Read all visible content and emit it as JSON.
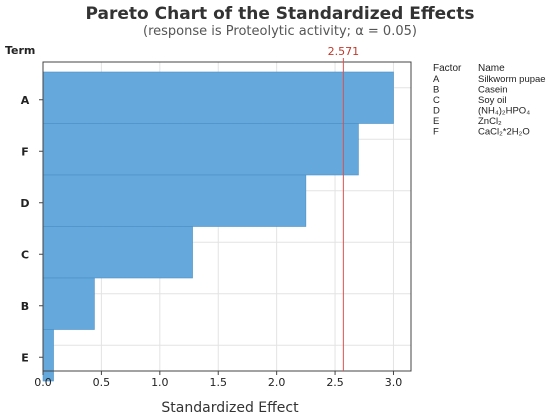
{
  "colors": {
    "bar": "#64a8dc",
    "bar_edge": "#4b8fc6",
    "ref_line": "#d9534f",
    "ref_label": "#c0392b",
    "grid": "#e3e3e3"
  },
  "chart_data": {
    "type": "bar",
    "orientation": "horizontal",
    "title": "Pareto Chart of the Standardized Effects",
    "subtitle": "(response is Proteolytic activity; α = 0.05)",
    "xlabel": "Standardized Effect",
    "ylabel": "Term",
    "categories": [
      "A",
      "F",
      "D",
      "C",
      "B",
      "E"
    ],
    "values": [
      3.0,
      2.7,
      2.25,
      1.28,
      0.44,
      0.09
    ],
    "xlim": [
      0,
      3.15
    ],
    "xticks": [
      "0.0",
      "0.5",
      "1.0",
      "1.5",
      "2.0",
      "2.5",
      "3.0"
    ],
    "grid": true,
    "reference_line": {
      "value": 2.571,
      "label": "2.571"
    },
    "legend": {
      "position": "right",
      "header_factor": "Factor",
      "header_name": "Name",
      "entries": [
        {
          "factor": "A",
          "name": "Silkworm pupae"
        },
        {
          "factor": "B",
          "name": "Casein"
        },
        {
          "factor": "C",
          "name": "Soy oil"
        },
        {
          "factor": "D",
          "name": "(NH₄)₂HPO₄"
        },
        {
          "factor": "E",
          "name": "ZnCl₂"
        },
        {
          "factor": "F",
          "name": "CaCl₂*2H₂O"
        }
      ]
    }
  }
}
